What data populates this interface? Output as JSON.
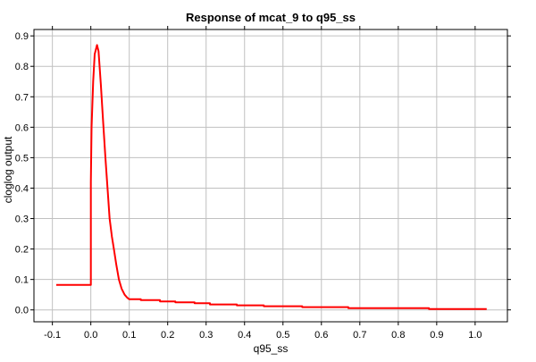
{
  "chart_data": {
    "type": "line",
    "title": "Response of mcat_9 to q95_ss",
    "xlabel": "q95_ss",
    "ylabel": "cloglog output",
    "xlim": [
      -0.148,
      1.084
    ],
    "ylim": [
      -0.039,
      0.921
    ],
    "xticks": [
      -0.1,
      0.0,
      0.1,
      0.2,
      0.3,
      0.4,
      0.5,
      0.6,
      0.7,
      0.8,
      0.9,
      1.0
    ],
    "xtick_labels": [
      "-0.1",
      "0.0",
      "0.1",
      "0.2",
      "0.3",
      "0.4",
      "0.5",
      "0.6",
      "0.7",
      "0.8",
      "0.9",
      "1.0"
    ],
    "yticks": [
      0.0,
      0.1,
      0.2,
      0.3,
      0.4,
      0.5,
      0.6,
      0.7,
      0.8,
      0.9
    ],
    "ytick_labels": [
      "0.0",
      "0.1",
      "0.2",
      "0.3",
      "0.4",
      "0.5",
      "0.6",
      "0.7",
      "0.8",
      "0.9"
    ],
    "grid": true,
    "series": [
      {
        "color": "#ff0000",
        "x": [
          -0.09,
          0.0,
          0.0,
          0.002,
          0.006,
          0.01,
          0.016,
          0.02,
          0.026,
          0.032,
          0.038,
          0.044,
          0.049,
          0.055,
          0.06,
          0.066,
          0.073,
          0.08,
          0.088,
          0.095,
          0.1,
          0.13,
          0.13,
          0.18,
          0.18,
          0.22,
          0.22,
          0.27,
          0.27,
          0.31,
          0.31,
          0.38,
          0.38,
          0.45,
          0.45,
          0.55,
          0.55,
          0.67,
          0.67,
          0.88,
          0.88,
          1.03
        ],
        "y": [
          0.082,
          0.082,
          0.42,
          0.6,
          0.75,
          0.84,
          0.87,
          0.85,
          0.74,
          0.62,
          0.5,
          0.39,
          0.3,
          0.24,
          0.2,
          0.15,
          0.1,
          0.07,
          0.05,
          0.04,
          0.035,
          0.035,
          0.032,
          0.032,
          0.028,
          0.028,
          0.025,
          0.025,
          0.022,
          0.022,
          0.018,
          0.018,
          0.015,
          0.015,
          0.012,
          0.012,
          0.009,
          0.009,
          0.006,
          0.006,
          0.003,
          0.003
        ]
      }
    ]
  }
}
